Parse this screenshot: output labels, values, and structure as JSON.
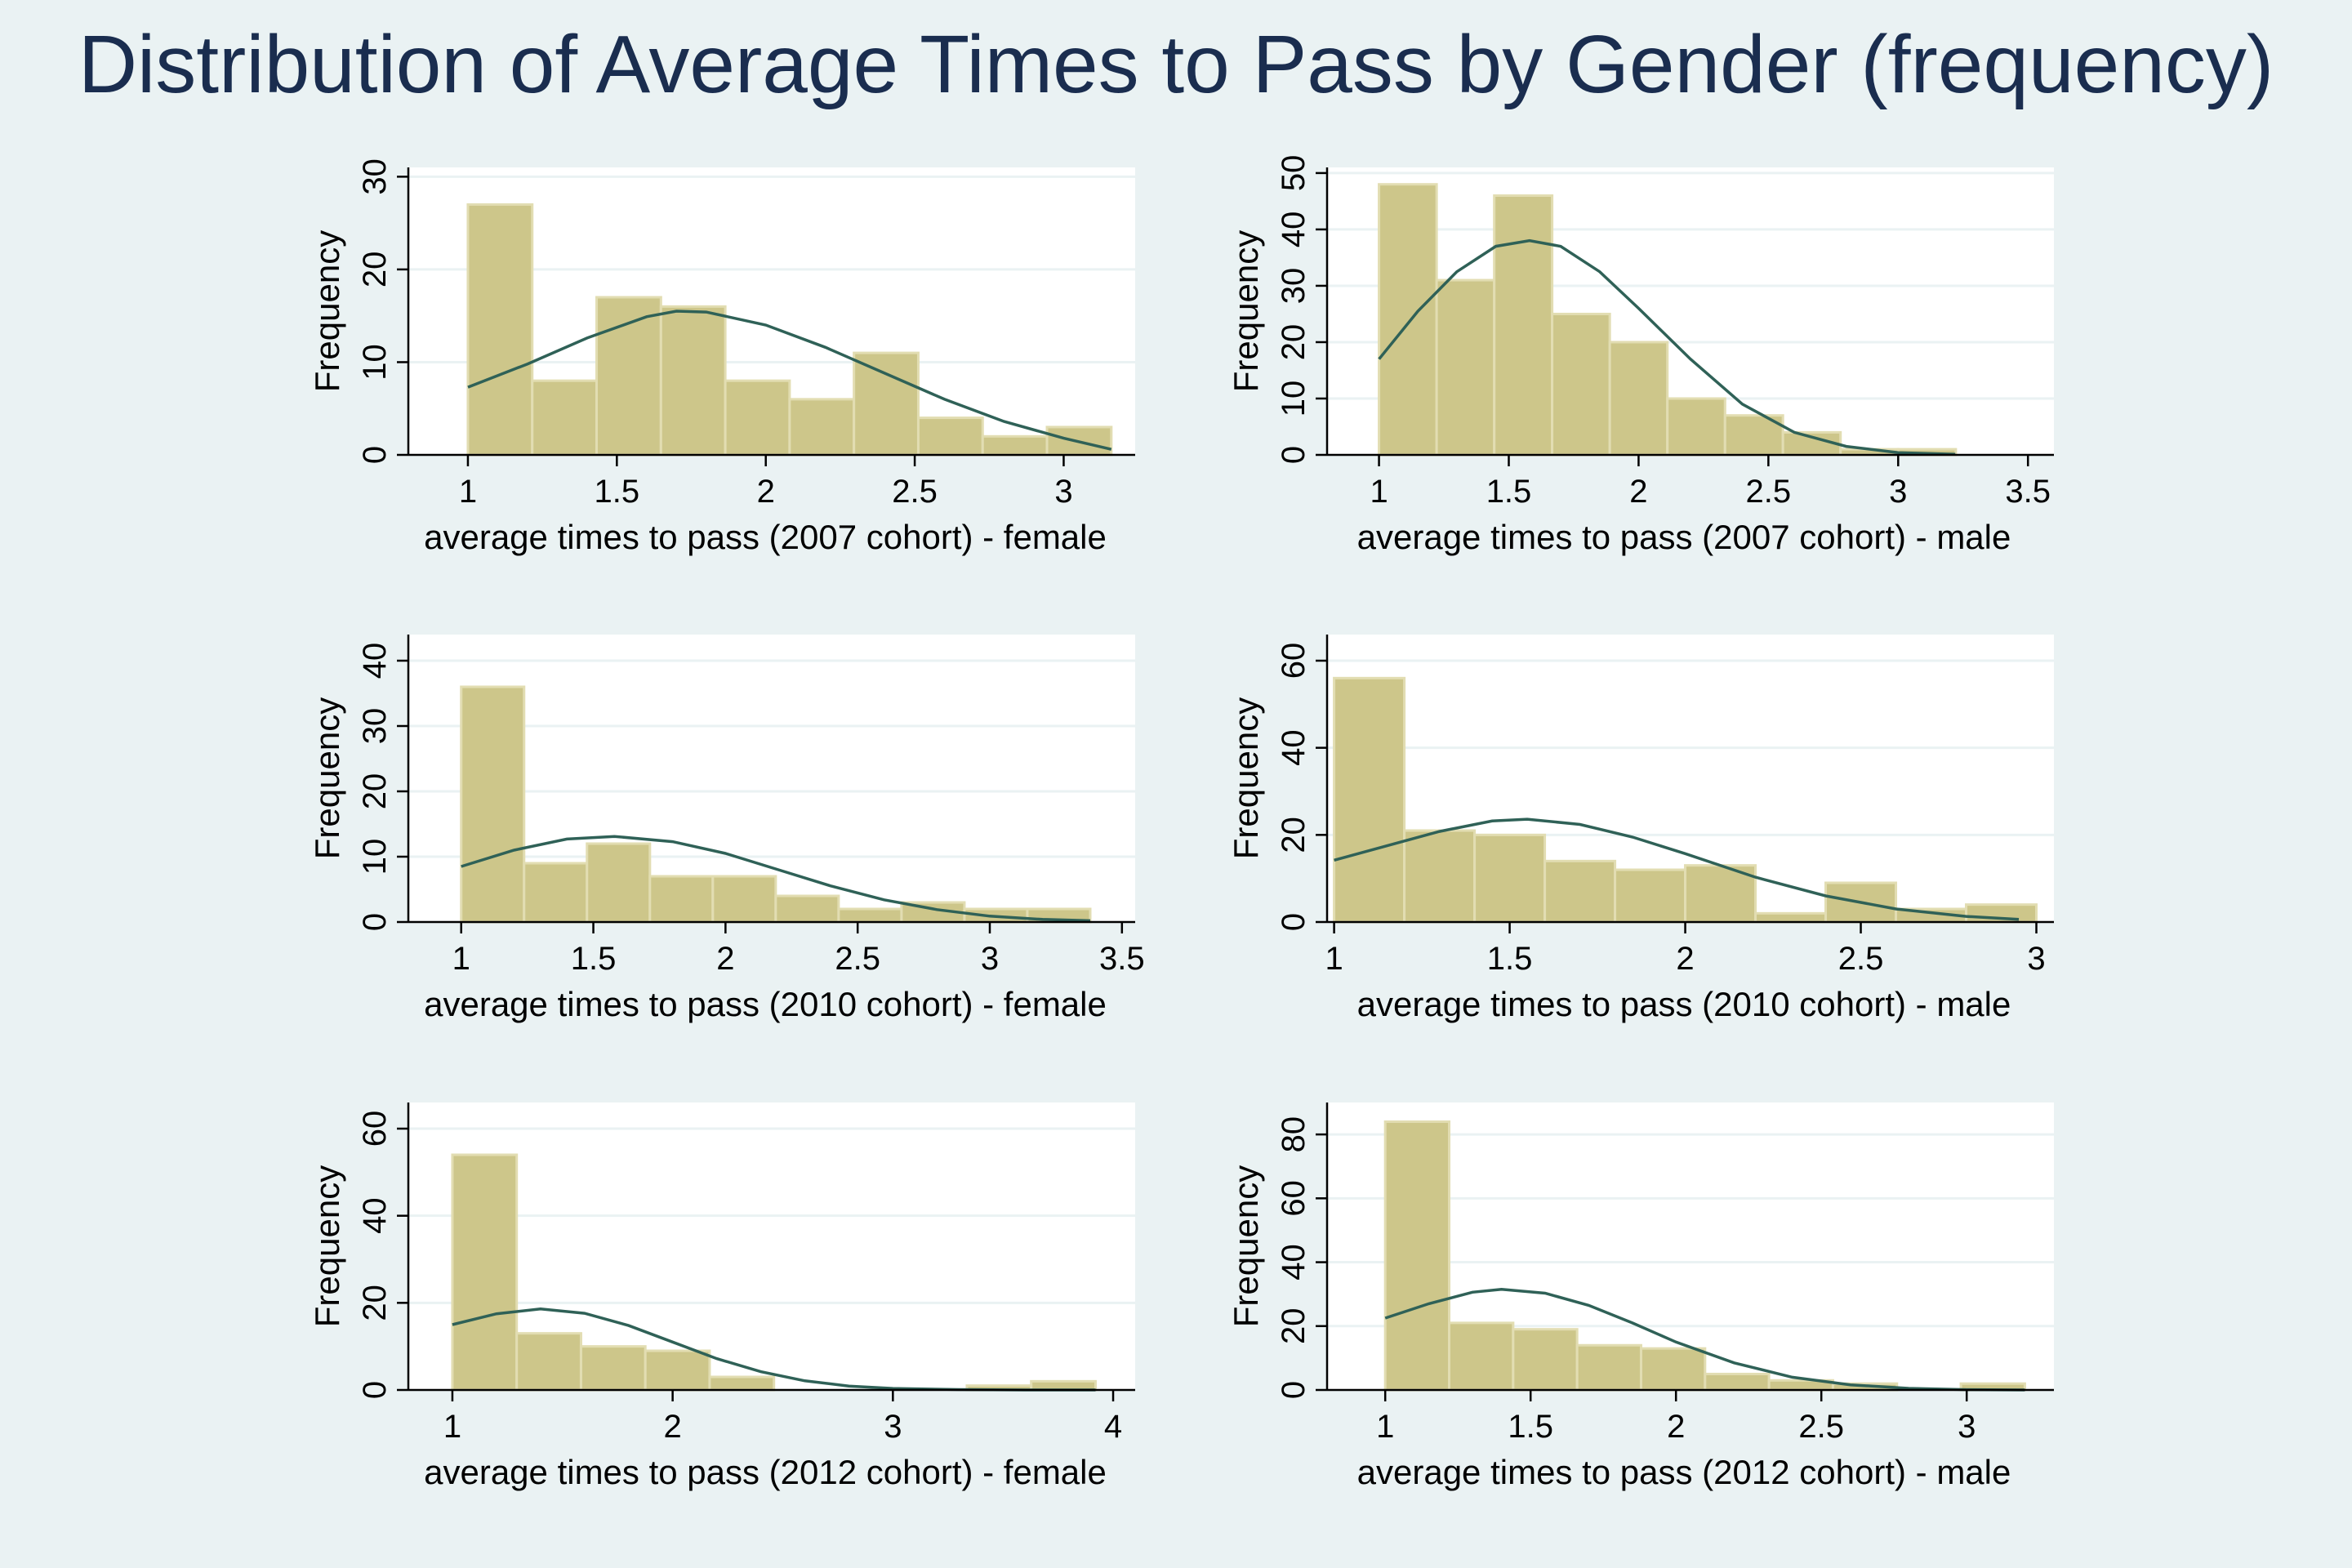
{
  "title": "Distribution of Average Times to Pass by Gender (frequency)",
  "colors": {
    "bar": "#cdc68a",
    "bar_outline": "#e2ddb2",
    "curve": "#2f6157",
    "background": "#eaf2f3",
    "title": "#1a2d4f"
  },
  "chart_data": [
    {
      "type": "bar",
      "subtype": "histogram with normal curve",
      "xlabel": "average times to pass (2007 cohort) - female",
      "ylabel": "Frequency",
      "xlim": [
        0.8,
        3.24
      ],
      "ylim": [
        0,
        31
      ],
      "xticks": [
        "1",
        "1.5",
        "2",
        "2.5",
        "3"
      ],
      "xtick_values": [
        1,
        1.5,
        2,
        2.5,
        3
      ],
      "yticks": [
        "0",
        "10",
        "20",
        "30"
      ],
      "ytick_values": [
        0,
        10,
        20,
        30
      ],
      "bins": [
        [
          1.0,
          1.216,
          27
        ],
        [
          1.216,
          1.432,
          8
        ],
        [
          1.432,
          1.648,
          17
        ],
        [
          1.648,
          1.864,
          16
        ],
        [
          1.864,
          2.08,
          8
        ],
        [
          2.08,
          2.296,
          6
        ],
        [
          2.296,
          2.512,
          11
        ],
        [
          2.512,
          2.728,
          4
        ],
        [
          2.728,
          2.944,
          2
        ],
        [
          2.944,
          3.16,
          3
        ]
      ],
      "curve": [
        [
          1.0,
          7.3
        ],
        [
          1.2,
          9.8
        ],
        [
          1.4,
          12.6
        ],
        [
          1.6,
          14.9
        ],
        [
          1.7,
          15.5
        ],
        [
          1.8,
          15.4
        ],
        [
          2.0,
          14.0
        ],
        [
          2.2,
          11.6
        ],
        [
          2.4,
          8.8
        ],
        [
          2.6,
          6.0
        ],
        [
          2.8,
          3.6
        ],
        [
          3.0,
          1.8
        ],
        [
          3.16,
          0.6
        ]
      ],
      "grid": true
    },
    {
      "type": "bar",
      "subtype": "histogram with normal curve",
      "xlabel": "average times to pass (2007 cohort) - male",
      "ylabel": "Frequency",
      "xlim": [
        0.8,
        3.6
      ],
      "ylim": [
        0,
        51
      ],
      "xticks": [
        "1",
        "1.5",
        "2",
        "2.5",
        "3",
        "3.5"
      ],
      "xtick_values": [
        1,
        1.5,
        2,
        2.5,
        3,
        3.5
      ],
      "yticks": [
        "0",
        "10",
        "20",
        "30",
        "40",
        "50"
      ],
      "ytick_values": [
        0,
        10,
        20,
        30,
        40,
        50
      ],
      "bins": [
        [
          1.0,
          1.222,
          48
        ],
        [
          1.222,
          1.444,
          31
        ],
        [
          1.444,
          1.667,
          46
        ],
        [
          1.667,
          1.889,
          25
        ],
        [
          1.889,
          2.111,
          20
        ],
        [
          2.111,
          2.333,
          10
        ],
        [
          2.333,
          2.556,
          7
        ],
        [
          2.556,
          2.778,
          4
        ],
        [
          2.778,
          3.0,
          1
        ],
        [
          3.0,
          3.222,
          1
        ]
      ],
      "curve": [
        [
          1.0,
          17.0
        ],
        [
          1.15,
          25.5
        ],
        [
          1.3,
          32.5
        ],
        [
          1.45,
          37.0
        ],
        [
          1.58,
          38.0
        ],
        [
          1.7,
          37.0
        ],
        [
          1.85,
          32.5
        ],
        [
          2.0,
          26.0
        ],
        [
          2.2,
          17.0
        ],
        [
          2.4,
          9.0
        ],
        [
          2.6,
          4.0
        ],
        [
          2.8,
          1.5
        ],
        [
          3.0,
          0.4
        ],
        [
          3.22,
          0.1
        ]
      ],
      "grid": true
    },
    {
      "type": "bar",
      "subtype": "histogram with normal curve",
      "xlabel": "average times to pass (2010 cohort) - female",
      "ylabel": "Frequency",
      "xlim": [
        0.8,
        3.55
      ],
      "ylim": [
        0,
        44
      ],
      "xticks": [
        "1",
        "1.5",
        "2",
        "2.5",
        "3",
        "3.5"
      ],
      "xtick_values": [
        1,
        1.5,
        2,
        2.5,
        3,
        3.5
      ],
      "yticks": [
        "0",
        "10",
        "20",
        "30",
        "40"
      ],
      "ytick_values": [
        0,
        10,
        20,
        30,
        40
      ],
      "bins": [
        [
          1.0,
          1.238,
          36
        ],
        [
          1.238,
          1.476,
          9
        ],
        [
          1.476,
          1.714,
          12
        ],
        [
          1.714,
          1.952,
          7
        ],
        [
          1.952,
          2.19,
          7
        ],
        [
          2.19,
          2.428,
          4
        ],
        [
          2.428,
          2.666,
          2
        ],
        [
          2.666,
          2.904,
          3
        ],
        [
          2.904,
          3.142,
          2
        ],
        [
          3.142,
          3.38,
          2
        ]
      ],
      "curve": [
        [
          1.0,
          8.5
        ],
        [
          1.2,
          11.0
        ],
        [
          1.4,
          12.7
        ],
        [
          1.58,
          13.1
        ],
        [
          1.8,
          12.3
        ],
        [
          2.0,
          10.5
        ],
        [
          2.2,
          8.0
        ],
        [
          2.4,
          5.5
        ],
        [
          2.6,
          3.4
        ],
        [
          2.8,
          1.9
        ],
        [
          3.0,
          0.9
        ],
        [
          3.2,
          0.4
        ],
        [
          3.38,
          0.2
        ]
      ],
      "grid": true
    },
    {
      "type": "bar",
      "subtype": "histogram with normal curve",
      "xlabel": "average times to pass (2010 cohort) - male",
      "ylabel": "Frequency",
      "xlim": [
        0.98,
        3.05
      ],
      "ylim": [
        0,
        66
      ],
      "xticks": [
        "1",
        "1.5",
        "2",
        "2.5",
        "3"
      ],
      "xtick_values": [
        1,
        1.5,
        2,
        2.5,
        3
      ],
      "yticks": [
        "0",
        "20",
        "40",
        "60"
      ],
      "ytick_values": [
        0,
        20,
        40,
        60
      ],
      "bins": [
        [
          1.0,
          1.2,
          56
        ],
        [
          1.2,
          1.4,
          21
        ],
        [
          1.4,
          1.6,
          20
        ],
        [
          1.6,
          1.8,
          14
        ],
        [
          1.8,
          2.0,
          12
        ],
        [
          2.0,
          2.2,
          13
        ],
        [
          2.2,
          2.4,
          2
        ],
        [
          2.4,
          2.6,
          9
        ],
        [
          2.6,
          2.8,
          3
        ],
        [
          2.8,
          3.0,
          4
        ]
      ],
      "curve": [
        [
          1.0,
          14.2
        ],
        [
          1.15,
          17.5
        ],
        [
          1.3,
          20.8
        ],
        [
          1.45,
          23.2
        ],
        [
          1.55,
          23.6
        ],
        [
          1.7,
          22.4
        ],
        [
          1.85,
          19.5
        ],
        [
          2.0,
          15.7
        ],
        [
          2.2,
          10.3
        ],
        [
          2.4,
          6.0
        ],
        [
          2.6,
          3.0
        ],
        [
          2.8,
          1.3
        ],
        [
          2.95,
          0.6
        ]
      ],
      "grid": true
    },
    {
      "type": "bar",
      "subtype": "histogram with normal curve",
      "xlabel": "average times to pass (2012 cohort) - female",
      "ylabel": "Frequency",
      "xlim": [
        0.8,
        4.1
      ],
      "ylim": [
        0,
        66
      ],
      "xticks": [
        "1",
        "2",
        "3",
        "4"
      ],
      "xtick_values": [
        1,
        2,
        3,
        4
      ],
      "yticks": [
        "0",
        "20",
        "40",
        "60"
      ],
      "ytick_values": [
        0,
        20,
        40,
        60
      ],
      "bins": [
        [
          1.0,
          1.292,
          54
        ],
        [
          1.292,
          1.584,
          13
        ],
        [
          1.584,
          1.876,
          10
        ],
        [
          1.876,
          2.168,
          9
        ],
        [
          2.168,
          2.46,
          3
        ],
        [
          2.46,
          2.752,
          0
        ],
        [
          2.752,
          3.044,
          0
        ],
        [
          3.044,
          3.336,
          0
        ],
        [
          3.336,
          3.628,
          1
        ],
        [
          3.628,
          3.92,
          2
        ]
      ],
      "curve": [
        [
          1.0,
          15.0
        ],
        [
          1.2,
          17.5
        ],
        [
          1.4,
          18.6
        ],
        [
          1.6,
          17.6
        ],
        [
          1.8,
          14.8
        ],
        [
          2.0,
          11.0
        ],
        [
          2.2,
          7.2
        ],
        [
          2.4,
          4.2
        ],
        [
          2.6,
          2.1
        ],
        [
          2.8,
          0.9
        ],
        [
          3.0,
          0.35
        ],
        [
          3.3,
          0.1
        ],
        [
          3.6,
          0.0
        ],
        [
          3.92,
          0.0
        ]
      ],
      "grid": true
    },
    {
      "type": "bar",
      "subtype": "histogram with normal curve",
      "xlabel": "average times to pass (2012 cohort) - male",
      "ylabel": "Frequency",
      "xlim": [
        0.8,
        3.3
      ],
      "ylim": [
        0,
        90
      ],
      "xticks": [
        "1",
        "1.5",
        "2",
        "2.5",
        "3"
      ],
      "xtick_values": [
        1,
        1.5,
        2,
        2.5,
        3
      ],
      "yticks": [
        "0",
        "20",
        "40",
        "60",
        "80"
      ],
      "ytick_values": [
        0,
        20,
        40,
        60,
        80
      ],
      "bins": [
        [
          1.0,
          1.22,
          84
        ],
        [
          1.22,
          1.44,
          21
        ],
        [
          1.44,
          1.66,
          19
        ],
        [
          1.66,
          1.88,
          14
        ],
        [
          1.88,
          2.1,
          13
        ],
        [
          2.1,
          2.32,
          5
        ],
        [
          2.32,
          2.54,
          3
        ],
        [
          2.54,
          2.76,
          2
        ],
        [
          2.76,
          2.98,
          0
        ],
        [
          2.98,
          3.2,
          2
        ]
      ],
      "curve": [
        [
          1.0,
          22.5
        ],
        [
          1.15,
          27.0
        ],
        [
          1.3,
          30.6
        ],
        [
          1.4,
          31.5
        ],
        [
          1.55,
          30.3
        ],
        [
          1.7,
          26.5
        ],
        [
          1.85,
          21.0
        ],
        [
          2.0,
          15.0
        ],
        [
          2.2,
          8.5
        ],
        [
          2.4,
          4.0
        ],
        [
          2.6,
          1.6
        ],
        [
          2.8,
          0.5
        ],
        [
          3.0,
          0.1
        ],
        [
          3.2,
          0.0
        ]
      ],
      "grid": true
    }
  ]
}
